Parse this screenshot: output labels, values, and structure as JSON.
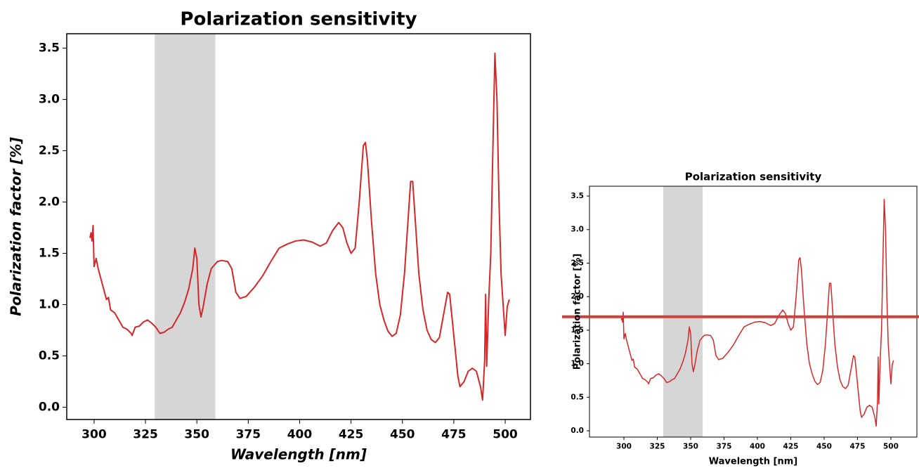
{
  "chart_data": [
    {
      "type": "line",
      "title": "Polarization sensitivity",
      "xlabel": "Wavelength [nm]",
      "ylabel": "Polarization factor [%]",
      "xlim": [
        286.7,
        512.3
      ],
      "ylim": [
        -0.12,
        3.64
      ],
      "xticks": [
        300,
        325,
        350,
        375,
        400,
        425,
        450,
        475,
        500
      ],
      "yticks": [
        {
          "value": 0,
          "label": "0.0"
        },
        0.5,
        {
          "value": 1,
          "label": "1.0"
        },
        1.5,
        {
          "value": 2,
          "label": "2.0"
        },
        2.5,
        {
          "value": 3,
          "label": "3.0"
        },
        3.5
      ],
      "span": [
        329.5,
        359
      ],
      "span_color": "#d6d6d6",
      "series": [
        {
          "color": "#d62728",
          "x": [
            298,
            298.5,
            299,
            299.5,
            300,
            301,
            302,
            304,
            306,
            307,
            308,
            310,
            312,
            314,
            316,
            318,
            318.5,
            320,
            322,
            324,
            326,
            328,
            330,
            332,
            334,
            336,
            338,
            340,
            342,
            344,
            346,
            348,
            349,
            350,
            351,
            352,
            353,
            355,
            357,
            360,
            362,
            365,
            367,
            369,
            371,
            374,
            378,
            382,
            386,
            390,
            394,
            398,
            402,
            406,
            410,
            413,
            416,
            419,
            421,
            423,
            425,
            427,
            429,
            431,
            432,
            433,
            435,
            437,
            439,
            441,
            443,
            445,
            447,
            449,
            451,
            453,
            454,
            455,
            456,
            458,
            460,
            462,
            464,
            466,
            468,
            470,
            472,
            473,
            475,
            477,
            478,
            480,
            482,
            484,
            486,
            488,
            489,
            490,
            490.5,
            491,
            492,
            493,
            494,
            495,
            496,
            497,
            498,
            499,
            500,
            501,
            502
          ],
          "values": [
            1.65,
            1.7,
            1.62,
            1.77,
            1.37,
            1.45,
            1.35,
            1.2,
            1.05,
            1.07,
            0.95,
            0.92,
            0.85,
            0.78,
            0.76,
            0.72,
            0.7,
            0.78,
            0.79,
            0.83,
            0.85,
            0.82,
            0.78,
            0.72,
            0.73,
            0.76,
            0.78,
            0.85,
            0.92,
            1.02,
            1.15,
            1.35,
            1.55,
            1.45,
            1.0,
            0.88,
            0.97,
            1.2,
            1.35,
            1.42,
            1.43,
            1.42,
            1.35,
            1.12,
            1.06,
            1.08,
            1.17,
            1.28,
            1.42,
            1.55,
            1.59,
            1.62,
            1.63,
            1.61,
            1.57,
            1.6,
            1.72,
            1.8,
            1.75,
            1.6,
            1.5,
            1.55,
            2.0,
            2.55,
            2.58,
            2.4,
            1.8,
            1.3,
            1.0,
            0.85,
            0.74,
            0.69,
            0.72,
            0.9,
            1.3,
            1.9,
            2.2,
            2.2,
            1.9,
            1.3,
            0.95,
            0.75,
            0.66,
            0.63,
            0.68,
            0.9,
            1.12,
            1.1,
            0.7,
            0.3,
            0.2,
            0.25,
            0.35,
            0.38,
            0.35,
            0.2,
            0.07,
            0.45,
            1.1,
            0.4,
            1.05,
            1.5,
            2.5,
            3.45,
            3.0,
            2.0,
            1.3,
            1.0,
            0.7,
            0.98,
            1.05
          ]
        }
      ]
    },
    {
      "type": "line",
      "title": "Polarization sensitivity",
      "xlabel": "Wavelength [nm]",
      "ylabel": "Polarization factor [%]",
      "xlim": [
        274.2,
        519.5
      ],
      "ylim": [
        -0.094,
        3.647
      ],
      "xticks": [
        300,
        325,
        350,
        375,
        400,
        425,
        450,
        475,
        500
      ],
      "yticks": [
        {
          "value": 0,
          "label": "0.0"
        },
        0.5,
        {
          "value": 1,
          "label": "1.0"
        },
        1.5,
        {
          "value": 2,
          "label": "2.0"
        },
        2.5,
        {
          "value": 3,
          "label": "3.0"
        },
        3.5
      ],
      "span": [
        329.5,
        359
      ],
      "span_color": "#d6d6d6",
      "hline": 1.7,
      "hline_color": "#d0403a",
      "series": [
        {
          "color": "#d62728",
          "x": [
            298,
            298.5,
            299,
            299.5,
            300,
            301,
            302,
            304,
            306,
            307,
            308,
            310,
            312,
            314,
            316,
            318,
            318.5,
            320,
            322,
            324,
            326,
            328,
            330,
            332,
            334,
            336,
            338,
            340,
            342,
            344,
            346,
            348,
            349,
            350,
            351,
            352,
            353,
            355,
            357,
            360,
            362,
            365,
            367,
            369,
            371,
            374,
            378,
            382,
            386,
            390,
            394,
            398,
            402,
            406,
            410,
            413,
            416,
            419,
            421,
            423,
            425,
            427,
            429,
            431,
            432,
            433,
            435,
            437,
            439,
            441,
            443,
            445,
            447,
            449,
            451,
            453,
            454,
            455,
            456,
            458,
            460,
            462,
            464,
            466,
            468,
            470,
            472,
            473,
            475,
            477,
            478,
            480,
            482,
            484,
            486,
            488,
            489,
            490,
            490.5,
            491,
            492,
            493,
            494,
            495,
            496,
            497,
            498,
            499,
            500,
            501,
            502
          ],
          "values": [
            1.65,
            1.7,
            1.62,
            1.77,
            1.37,
            1.45,
            1.35,
            1.2,
            1.05,
            1.07,
            0.95,
            0.92,
            0.85,
            0.78,
            0.76,
            0.72,
            0.7,
            0.78,
            0.79,
            0.83,
            0.85,
            0.82,
            0.78,
            0.72,
            0.73,
            0.76,
            0.78,
            0.85,
            0.92,
            1.02,
            1.15,
            1.35,
            1.55,
            1.45,
            1.0,
            0.88,
            0.97,
            1.2,
            1.35,
            1.42,
            1.43,
            1.42,
            1.35,
            1.12,
            1.06,
            1.08,
            1.17,
            1.28,
            1.42,
            1.55,
            1.59,
            1.62,
            1.63,
            1.61,
            1.57,
            1.6,
            1.72,
            1.8,
            1.75,
            1.6,
            1.5,
            1.55,
            2.0,
            2.55,
            2.58,
            2.4,
            1.8,
            1.3,
            1.0,
            0.85,
            0.74,
            0.69,
            0.72,
            0.9,
            1.3,
            1.9,
            2.2,
            2.2,
            1.9,
            1.3,
            0.95,
            0.75,
            0.66,
            0.63,
            0.68,
            0.9,
            1.12,
            1.1,
            0.7,
            0.3,
            0.2,
            0.25,
            0.35,
            0.38,
            0.35,
            0.2,
            0.07,
            0.45,
            1.1,
            0.4,
            1.05,
            1.5,
            2.5,
            3.45,
            3.0,
            2.0,
            1.3,
            1.0,
            0.7,
            0.98,
            1.05
          ]
        }
      ]
    }
  ]
}
